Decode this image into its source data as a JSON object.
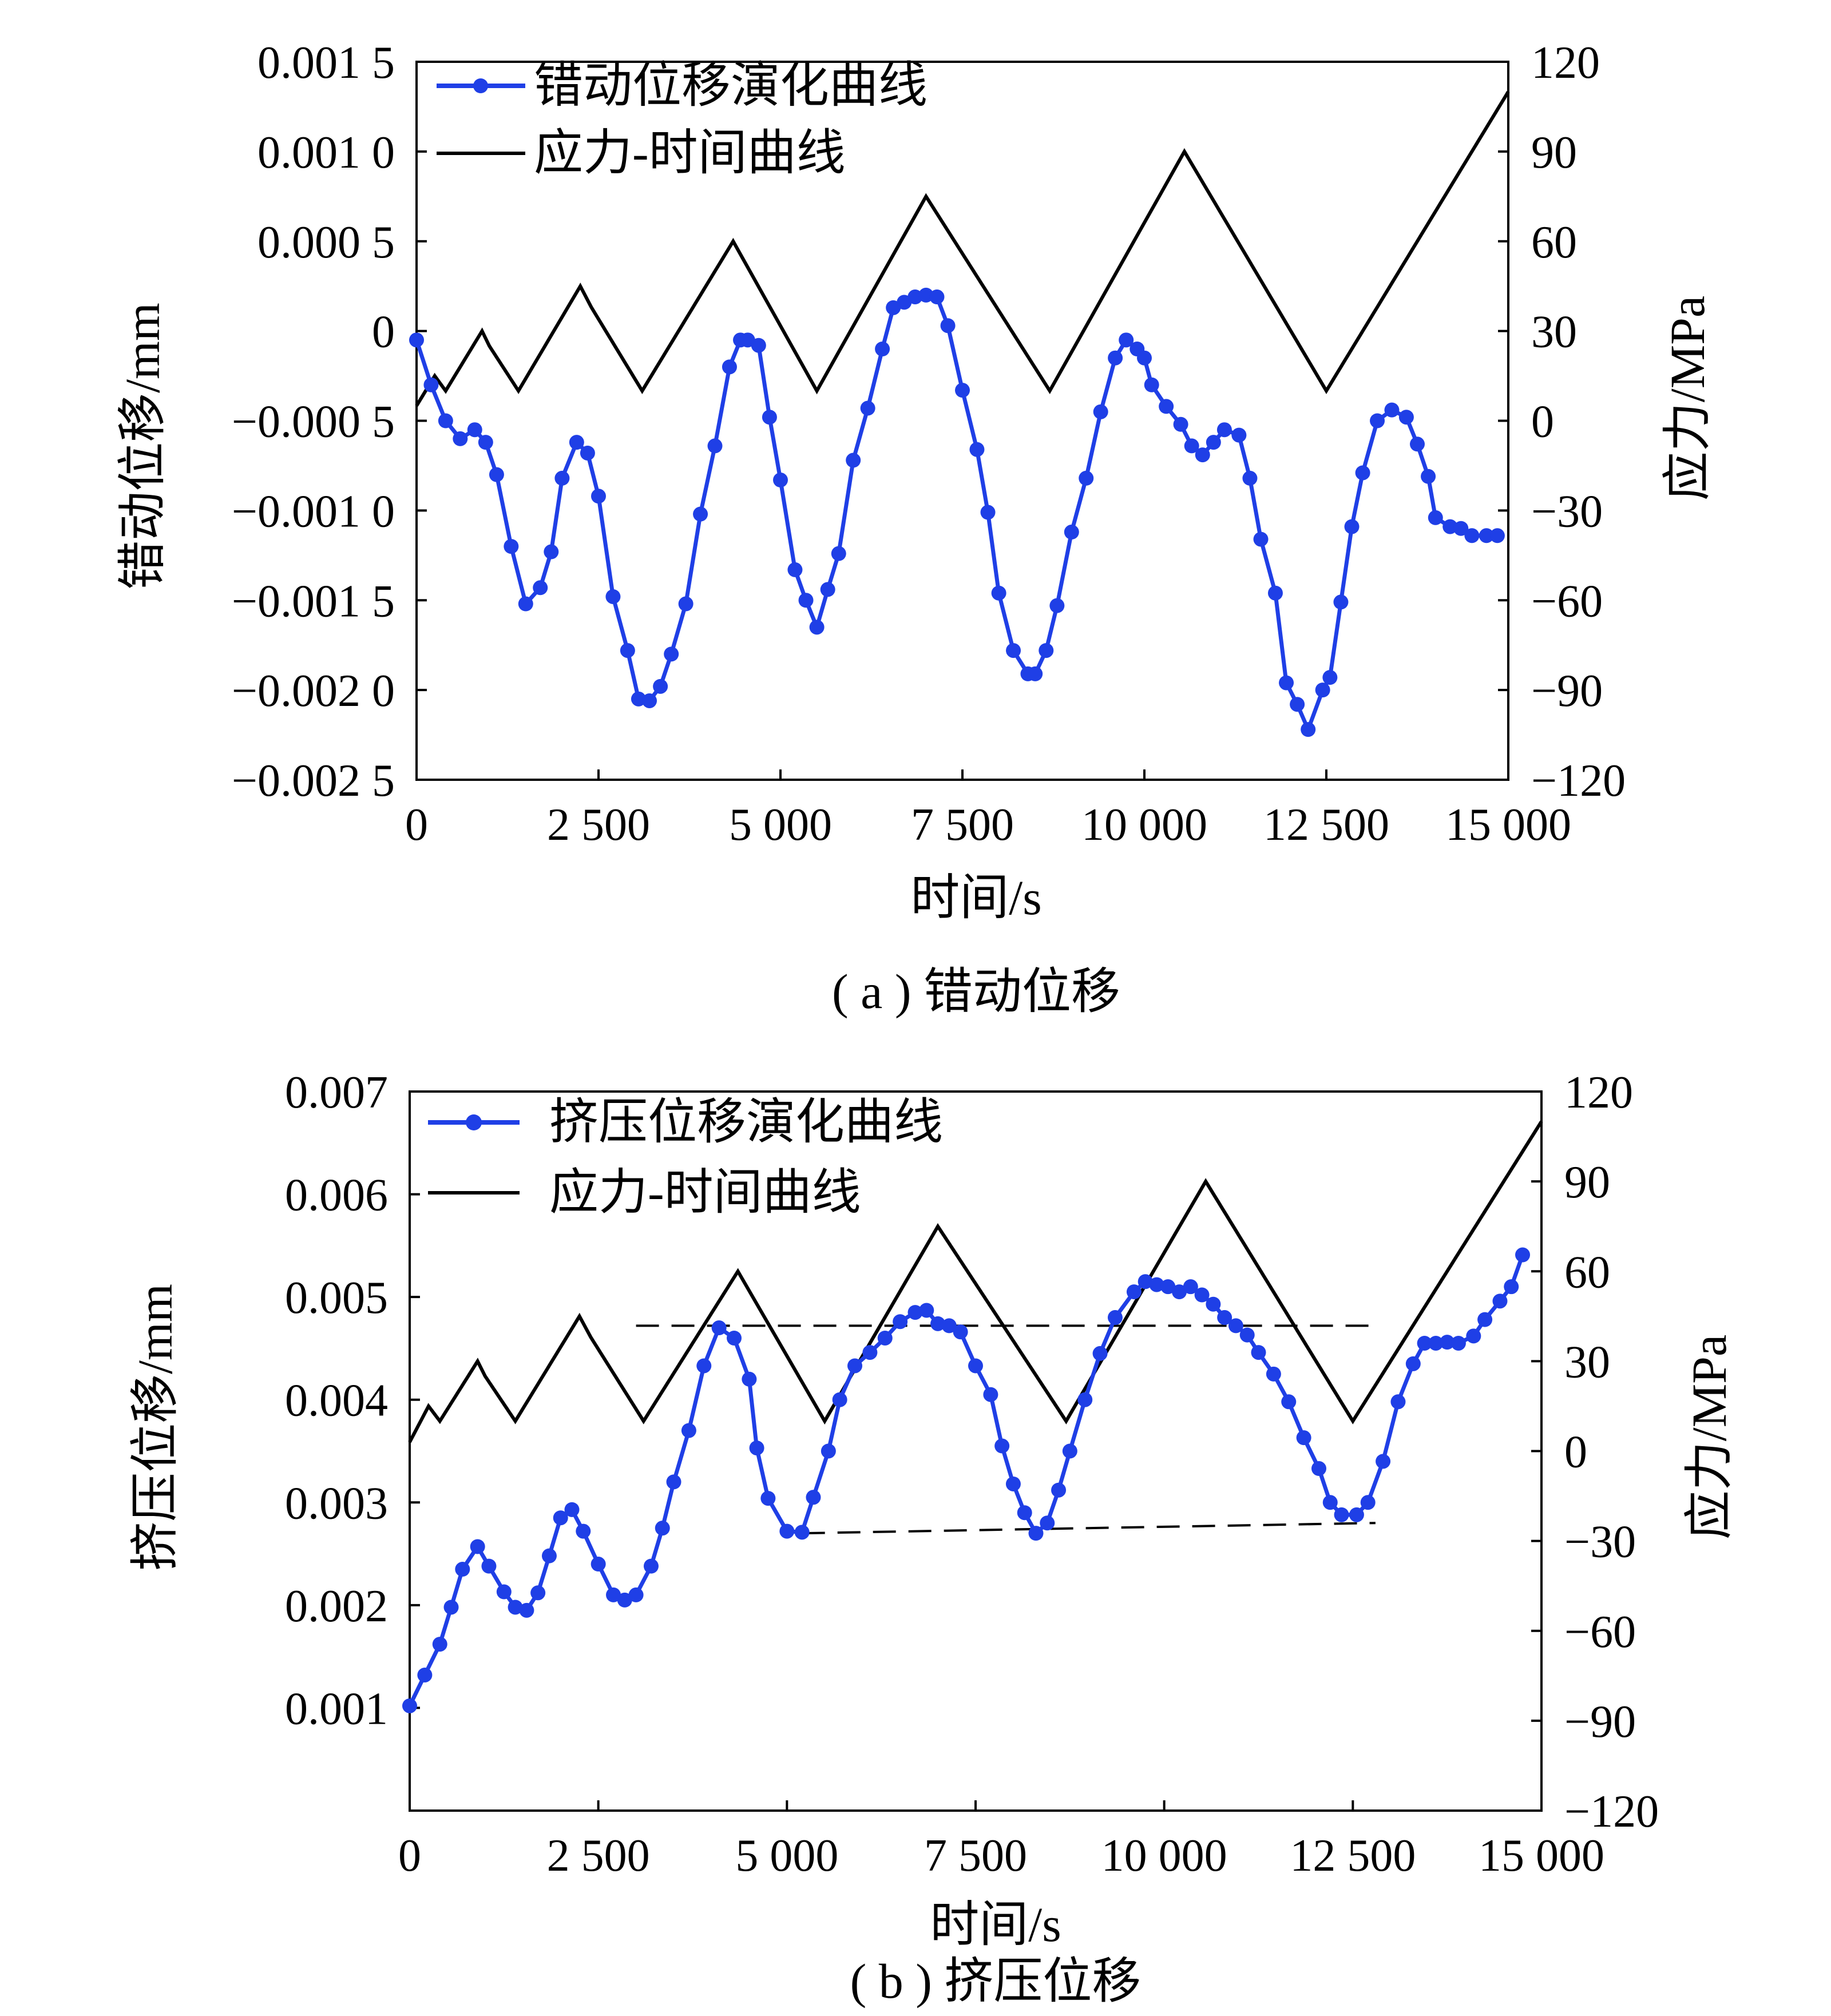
{
  "colors": {
    "displacement": "#1f3fe6",
    "stress": "#000000"
  },
  "chart_data": [
    {
      "type": "line",
      "caption": "( a ) 错动位移",
      "xlabel": "时间/s",
      "ylabel": "错动位移/mm",
      "y2label": "应力/MPa",
      "xlim": [
        0,
        15000
      ],
      "ylim": [
        -0.0025,
        0.0015
      ],
      "y2lim": [
        -120,
        120
      ],
      "xticks": [
        0,
        2500,
        5000,
        7500,
        10000,
        12500,
        15000
      ],
      "xtick_labels": [
        "0",
        "2 500",
        "5 000",
        "7 500",
        "10 000",
        "12 500",
        "15 000"
      ],
      "yticks": [
        0.0015,
        0.001,
        0.0005,
        0,
        -0.0005,
        -0.001,
        -0.0015,
        -0.002,
        -0.0025
      ],
      "ytick_labels": [
        "0.001 5",
        "0.001 0",
        "0.000 5",
        "0",
        "−0.000 5",
        "−0.001 0",
        "−0.001 5",
        "−0.002 0",
        "−0.002 5"
      ],
      "y2ticks": [
        120,
        90,
        60,
        30,
        0,
        -30,
        -60,
        -90,
        -120
      ],
      "y2tick_labels": [
        "120",
        "90",
        "60",
        "30",
        "0",
        "−30",
        "−60",
        "−90",
        "−120"
      ],
      "legend_position": "top-left",
      "series": [
        {
          "name": "错动位移演化曲线",
          "axis": "left",
          "marker": "circle",
          "x": [
            0,
            200,
            400,
            600,
            800,
            950,
            1100,
            1300,
            1500,
            1700,
            1850,
            2000,
            2200,
            2350,
            2500,
            2700,
            2900,
            3050,
            3200,
            3350,
            3500,
            3700,
            3900,
            4100,
            4300,
            4450,
            4550,
            4700,
            4850,
            5000,
            5200,
            5350,
            5500,
            5650,
            5800,
            6000,
            6200,
            6400,
            6550,
            6700,
            6850,
            7000,
            7150,
            7300,
            7500,
            7700,
            7850,
            8000,
            8200,
            8400,
            8500,
            8650,
            8800,
            9000,
            9200,
            9400,
            9600,
            9750,
            9900,
            10000,
            10100,
            10300,
            10500,
            10650,
            10800,
            10950,
            11100,
            11300,
            11450,
            11600,
            11800,
            11950,
            12100,
            12250,
            12450,
            12550,
            12700,
            12850,
            13000,
            13200,
            13400,
            13600,
            13750,
            13900,
            14000,
            14200,
            14350,
            14500,
            14700,
            14850
          ],
          "y": [
            -5e-05,
            -0.0003,
            -0.0005,
            -0.0006,
            -0.00055,
            -0.00062,
            -0.0008,
            -0.0012,
            -0.00152,
            -0.00143,
            -0.00123,
            -0.00082,
            -0.00062,
            -0.00068,
            -0.00092,
            -0.00148,
            -0.00178,
            -0.00205,
            -0.00206,
            -0.00198,
            -0.0018,
            -0.00152,
            -0.00102,
            -0.00064,
            -0.0002,
            -5e-05,
            -5e-05,
            -8e-05,
            -0.00048,
            -0.00083,
            -0.00133,
            -0.0015,
            -0.00165,
            -0.00144,
            -0.00124,
            -0.00072,
            -0.00043,
            -0.0001,
            0.00013,
            0.00016,
            0.00019,
            0.0002,
            0.00019,
            3e-05,
            -0.00033,
            -0.00066,
            -0.00101,
            -0.00146,
            -0.00178,
            -0.00191,
            -0.00191,
            -0.00178,
            -0.00153,
            -0.00112,
            -0.00082,
            -0.00045,
            -0.00015,
            -5e-05,
            -0.0001,
            -0.00015,
            -0.0003,
            -0.00042,
            -0.00052,
            -0.00064,
            -0.00069,
            -0.00062,
            -0.00055,
            -0.00058,
            -0.00082,
            -0.00116,
            -0.00146,
            -0.00196,
            -0.00208,
            -0.00222,
            -0.002,
            -0.00193,
            -0.00151,
            -0.00109,
            -0.00079,
            -0.0005,
            -0.00044,
            -0.00048,
            -0.00063,
            -0.00081,
            -0.00104,
            -0.00109,
            -0.0011,
            -0.00114,
            -0.00114,
            -0.00114
          ]
        },
        {
          "name": "应力-时间曲线",
          "axis": "right",
          "x": [
            0,
            250,
            400,
            900,
            1000,
            1400,
            2250,
            2400,
            3100,
            4350,
            5500,
            7000,
            8700,
            10550,
            12500,
            15000
          ],
          "y": [
            5,
            15,
            10,
            30,
            25,
            10,
            45,
            38,
            10,
            60,
            10,
            75,
            10,
            90,
            10,
            110
          ]
        }
      ]
    },
    {
      "type": "line",
      "caption": "( b ) 挤压位移",
      "xlabel": "时间/s",
      "ylabel": "挤压位移/mm",
      "y2label": "应力/MPa",
      "xlim": [
        0,
        15000
      ],
      "ylim": [
        0,
        0.007
      ],
      "y2lim": [
        -120,
        120
      ],
      "xticks": [
        0,
        2500,
        5000,
        7500,
        10000,
        12500,
        15000
      ],
      "xtick_labels": [
        "0",
        "2 500",
        "5 000",
        "7 500",
        "10 000",
        "12 500",
        "15 000"
      ],
      "yticks": [
        0.007,
        0.006,
        0.005,
        0.004,
        0.003,
        0.002,
        0.001
      ],
      "ytick_labels": [
        "0.007",
        "0.006",
        "0.005",
        "0.004",
        "0.003",
        "0.002",
        "0.001"
      ],
      "y2ticks": [
        120,
        90,
        60,
        30,
        0,
        -30,
        -60,
        -90,
        -120
      ],
      "y2tick_labels": [
        "120",
        "90",
        "60",
        "30",
        "0",
        "−30",
        "−60",
        "−90",
        "−120"
      ],
      "legend_position": "top-left",
      "series": [
        {
          "name": "挤压位移演化曲线",
          "axis": "left",
          "marker": "circle",
          "x": [
            0,
            200,
            400,
            550,
            700,
            900,
            1050,
            1250,
            1400,
            1550,
            1700,
            1850,
            2000,
            2150,
            2300,
            2500,
            2700,
            2850,
            3000,
            3200,
            3350,
            3500,
            3700,
            3900,
            4100,
            4300,
            4500,
            4600,
            4750,
            5000,
            5200,
            5350,
            5550,
            5700,
            5900,
            6100,
            6300,
            6500,
            6700,
            6850,
            7000,
            7150,
            7300,
            7500,
            7700,
            7850,
            8000,
            8150,
            8300,
            8450,
            8600,
            8750,
            8950,
            9150,
            9350,
            9600,
            9750,
            9900,
            10050,
            10200,
            10350,
            10500,
            10650,
            10800,
            10950,
            11100,
            11250,
            11450,
            11650,
            11850,
            12050,
            12200,
            12350,
            12550,
            12700,
            12900,
            13100,
            13300,
            13450,
            13600,
            13750,
            13900,
            14100,
            14250,
            14450,
            14600,
            14750
          ],
          "y": [
            0.00102,
            0.00132,
            0.00162,
            0.00198,
            0.00235,
            0.00257,
            0.00238,
            0.00213,
            0.00198,
            0.00195,
            0.00212,
            0.00248,
            0.00285,
            0.00293,
            0.00272,
            0.0024,
            0.0021,
            0.00205,
            0.0021,
            0.00238,
            0.00275,
            0.0032,
            0.0037,
            0.00433,
            0.0047,
            0.0046,
            0.0042,
            0.00353,
            0.00304,
            0.00272,
            0.00271,
            0.00305,
            0.0035,
            0.004,
            0.00433,
            0.00446,
            0.0046,
            0.00476,
            0.00485,
            0.00487,
            0.00474,
            0.00472,
            0.00466,
            0.00433,
            0.00405,
            0.00355,
            0.00318,
            0.0029,
            0.0027,
            0.0028,
            0.00312,
            0.0035,
            0.004,
            0.00445,
            0.0048,
            0.00505,
            0.00515,
            0.00512,
            0.0051,
            0.00505,
            0.0051,
            0.00502,
            0.00493,
            0.0048,
            0.00472,
            0.00463,
            0.00446,
            0.00425,
            0.00398,
            0.00363,
            0.00333,
            0.003,
            0.00288,
            0.00288,
            0.003,
            0.0034,
            0.00398,
            0.00435,
            0.00455,
            0.00455,
            0.00456,
            0.00455,
            0.00462,
            0.00478,
            0.00496,
            0.0051,
            0.00541
          ]
        },
        {
          "name": "应力-时间曲线",
          "axis": "right",
          "x": [
            0,
            250,
            400,
            900,
            1000,
            1400,
            2250,
            2400,
            3100,
            4350,
            5500,
            7000,
            8700,
            10550,
            12500,
            15000
          ],
          "y": [
            3,
            15,
            10,
            30,
            25,
            10,
            45,
            38,
            10,
            60,
            10,
            75,
            10,
            90,
            10,
            110
          ]
        }
      ],
      "reference_lines": [
        {
          "style": "dashed",
          "axis": "left",
          "x": [
            3000,
            12800
          ],
          "y": [
            0.00472,
            0.00472
          ]
        },
        {
          "style": "dashed",
          "axis": "left",
          "x": [
            5200,
            12800
          ],
          "y": [
            0.0027,
            0.0028
          ]
        }
      ]
    }
  ]
}
